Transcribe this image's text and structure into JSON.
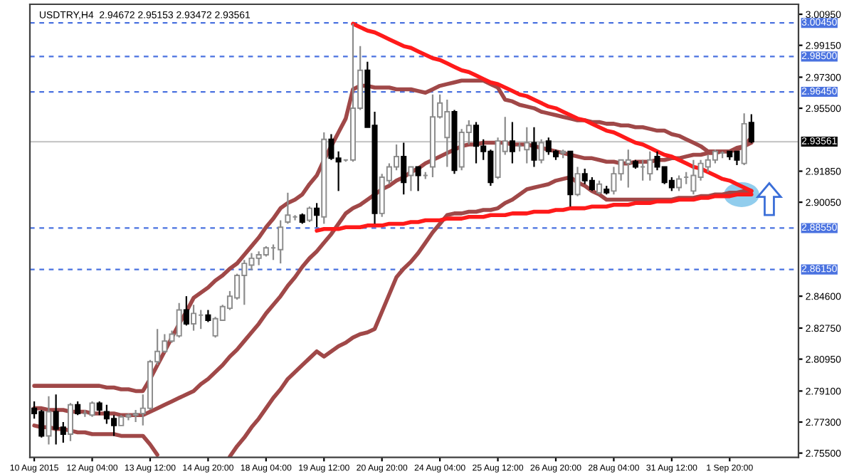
{
  "chart_data": {
    "type": "candlestick",
    "title": "USDTRY,H4  2.94672 2.95153 2.93472 2.93561",
    "categories": [
      "10 Aug 2015",
      null,
      null,
      null,
      null,
      null,
      null,
      null,
      "12 Aug 04:00",
      null,
      null,
      null,
      null,
      null,
      null,
      null,
      "13 Aug 12:00",
      null,
      null,
      null,
      null,
      null,
      null,
      null,
      "14 Aug 20:00",
      null,
      null,
      null,
      null,
      null,
      null,
      null,
      "18 Aug 04:00",
      null,
      null,
      null,
      null,
      null,
      null,
      null,
      "19 Aug 12:00",
      null,
      null,
      null,
      null,
      null,
      null,
      null,
      "20 Aug 20:00",
      null,
      null,
      null,
      null,
      null,
      null,
      null,
      "24 Aug 04:00",
      null,
      null,
      null,
      null,
      null,
      null,
      null,
      "25 Aug 12:00",
      null,
      null,
      null,
      null,
      null,
      null,
      null,
      "26 Aug 20:00",
      null,
      null,
      null,
      null,
      null,
      null,
      null,
      "28 Aug 04:00",
      null,
      null,
      null,
      null,
      null,
      null,
      null,
      "31 Aug 12:00",
      null,
      null,
      null,
      null,
      null,
      null,
      null,
      "1 Sep 20:00",
      null,
      null,
      null
    ],
    "ohlc": [
      [
        2.781,
        2.785,
        2.775,
        2.778
      ],
      [
        2.779,
        2.78,
        2.764,
        2.765
      ],
      [
        2.765,
        2.788,
        2.76,
        2.779
      ],
      [
        2.779,
        2.789,
        2.76,
        2.769
      ],
      [
        2.77,
        2.773,
        2.761,
        2.766
      ],
      [
        2.766,
        2.784,
        2.762,
        2.783
      ],
      [
        2.783,
        2.785,
        2.777,
        2.778
      ],
      [
        2.778,
        2.78,
        2.776,
        2.778
      ],
      [
        2.777,
        2.785,
        2.776,
        2.784
      ],
      [
        2.784,
        2.785,
        2.777,
        2.78
      ],
      [
        2.779,
        2.783,
        2.772,
        2.775
      ],
      [
        2.775,
        2.777,
        2.765,
        2.771
      ],
      [
        2.771,
        2.777,
        2.771,
        2.776
      ],
      [
        2.776,
        2.778,
        2.774,
        2.777
      ],
      [
        2.777,
        2.78,
        2.773,
        2.778
      ],
      [
        2.778,
        2.789,
        2.771,
        2.781
      ],
      [
        2.781,
        2.809,
        2.78,
        2.808
      ],
      [
        2.808,
        2.827,
        2.806,
        2.814
      ],
      [
        2.814,
        2.824,
        2.813,
        2.82
      ],
      [
        2.82,
        2.826,
        2.819,
        2.824
      ],
      [
        2.823,
        2.842,
        2.822,
        2.838
      ],
      [
        2.838,
        2.846,
        2.829,
        2.83
      ],
      [
        2.83,
        2.841,
        2.826,
        2.836
      ],
      [
        2.835,
        2.838,
        2.827,
        2.835
      ],
      [
        2.835,
        2.838,
        2.831,
        2.832
      ],
      [
        2.823,
        2.834,
        2.822,
        2.833
      ],
      [
        2.832,
        2.841,
        2.832,
        2.84
      ],
      [
        2.839,
        2.849,
        2.838,
        2.846
      ],
      [
        2.845,
        2.859,
        2.844,
        2.858
      ],
      [
        2.858,
        2.867,
        2.841,
        2.865
      ],
      [
        2.864,
        2.871,
        2.861,
        2.868
      ],
      [
        2.868,
        2.872,
        2.864,
        2.87
      ],
      [
        2.87,
        2.875,
        2.869,
        2.874
      ],
      [
        2.874,
        2.876,
        2.867,
        2.874
      ],
      [
        2.873,
        2.89,
        2.865,
        2.886
      ],
      [
        2.889,
        2.906,
        2.888,
        2.893
      ],
      [
        2.892,
        2.893,
        2.89,
        2.892
      ],
      [
        2.893,
        2.894,
        2.888,
        2.889
      ],
      [
        2.89,
        2.898,
        2.889,
        2.897
      ],
      [
        2.897,
        2.9,
        2.886,
        2.893
      ],
      [
        2.892,
        2.941,
        2.888,
        2.937
      ],
      [
        2.937,
        2.94,
        2.925,
        2.926
      ],
      [
        2.926,
        2.93,
        2.907,
        2.924
      ],
      [
        2.925,
        2.925,
        2.924,
        2.925
      ],
      [
        2.925,
        3.004,
        2.924,
        2.955
      ],
      [
        2.955,
        2.991,
        2.954,
        2.977
      ],
      [
        2.977,
        2.982,
        2.944,
        2.944
      ],
      [
        2.945,
        2.953,
        2.888,
        2.894
      ],
      [
        2.894,
        2.917,
        2.892,
        2.915
      ],
      [
        2.913,
        2.923,
        2.911,
        2.921
      ],
      [
        2.921,
        2.934,
        2.919,
        2.927
      ],
      [
        2.927,
        2.935,
        2.905,
        2.912
      ],
      [
        2.916,
        2.921,
        2.907,
        2.921
      ],
      [
        2.921,
        2.921,
        2.907,
        2.916
      ],
      [
        2.916,
        2.918,
        2.914,
        2.916
      ],
      [
        2.921,
        2.963,
        2.915,
        2.95
      ],
      [
        2.95,
        2.963,
        2.949,
        2.958
      ],
      [
        2.938,
        2.96,
        2.921,
        2.953
      ],
      [
        2.953,
        2.954,
        2.917,
        2.919
      ],
      [
        2.921,
        2.943,
        2.919,
        2.941
      ],
      [
        2.941,
        2.948,
        2.934,
        2.945
      ],
      [
        2.945,
        2.947,
        2.923,
        2.933
      ],
      [
        2.933,
        2.937,
        2.925,
        2.93
      ],
      [
        2.93,
        2.931,
        2.91,
        2.912
      ],
      [
        2.915,
        2.938,
        2.914,
        2.936
      ],
      [
        2.93,
        2.95,
        2.928,
        2.936
      ],
      [
        2.936,
        2.947,
        2.923,
        2.93
      ],
      [
        2.933,
        2.935,
        2.93,
        2.933
      ],
      [
        2.931,
        2.944,
        2.923,
        2.935
      ],
      [
        2.935,
        2.944,
        2.921,
        2.925
      ],
      [
        2.925,
        2.937,
        2.923,
        2.935
      ],
      [
        2.936,
        2.938,
        2.928,
        2.93
      ],
      [
        2.93,
        2.931,
        2.925,
        2.927
      ],
      [
        2.929,
        2.931,
        2.926,
        2.93
      ],
      [
        2.93,
        2.93,
        2.898,
        2.905
      ],
      [
        2.905,
        2.921,
        2.904,
        2.917
      ],
      [
        2.917,
        2.92,
        2.911,
        2.913
      ],
      [
        2.913,
        2.915,
        2.907,
        2.908
      ],
      [
        2.906,
        2.913,
        2.905,
        2.911
      ],
      [
        2.908,
        2.91,
        2.905,
        2.906
      ],
      [
        2.907,
        2.921,
        2.905,
        2.917
      ],
      [
        2.917,
        2.925,
        2.913,
        2.925
      ],
      [
        2.923,
        2.931,
        2.909,
        2.925
      ],
      [
        2.924,
        2.925,
        2.92,
        2.921
      ],
      [
        2.921,
        2.925,
        2.913,
        2.921
      ],
      [
        2.917,
        2.93,
        2.913,
        2.925
      ],
      [
        2.927,
        2.93,
        2.919,
        2.921
      ],
      [
        2.921,
        2.921,
        2.911,
        2.912
      ],
      [
        2.913,
        2.915,
        2.907,
        2.909
      ],
      [
        2.909,
        2.916,
        2.907,
        2.914
      ],
      [
        2.915,
        2.918,
        2.911,
        2.915
      ],
      [
        2.907,
        2.925,
        2.905,
        2.916
      ],
      [
        2.915,
        2.925,
        2.913,
        2.923
      ],
      [
        2.921,
        2.928,
        2.918,
        2.925
      ],
      [
        2.925,
        2.931,
        2.923,
        2.93
      ],
      [
        2.929,
        2.93,
        2.926,
        2.929
      ],
      [
        2.93,
        2.93,
        2.925,
        2.927
      ],
      [
        2.93,
        2.93,
        2.922,
        2.925
      ],
      [
        2.923,
        2.952,
        2.922,
        2.946
      ],
      [
        2.94672,
        2.95153,
        2.93472,
        2.93561
      ]
    ],
    "colors": [
      "#000000",
      "#000000",
      "#ffffff",
      "#000000",
      "#000000",
      "#ffffff",
      "#000000",
      "#8c8c8c",
      "#ffffff",
      "#000000",
      "#000000",
      "#000000",
      "#ffffff",
      "#ffffff",
      "#ffffff",
      "#ffffff",
      "#ffffff",
      "#ffffff",
      "#ffffff",
      "#ffffff",
      "#ffffff",
      "#000000",
      "#ffffff",
      "#8c8c8c",
      "#000000",
      "#ffffff",
      "#ffffff",
      "#ffffff",
      "#ffffff",
      "#ffffff",
      "#ffffff",
      "#ffffff",
      "#ffffff",
      "#8c8c8c",
      "#ffffff",
      "#ffffff",
      "#8c8c8c",
      "#000000",
      "#ffffff",
      "#000000",
      "#ffffff",
      "#000000",
      "#000000",
      "#8c8c8c",
      "#ffffff",
      "#ffffff",
      "#000000",
      "#000000",
      "#ffffff",
      "#ffffff",
      "#ffffff",
      "#000000",
      "#ffffff",
      "#000000",
      "#8c8c8c",
      "#ffffff",
      "#ffffff",
      "#ffffff",
      "#000000",
      "#ffffff",
      "#ffffff",
      "#000000",
      "#000000",
      "#000000",
      "#ffffff",
      "#ffffff",
      "#000000",
      "#8c8c8c",
      "#ffffff",
      "#000000",
      "#ffffff",
      "#000000",
      "#000000",
      "#ffffff",
      "#000000",
      "#ffffff",
      "#000000",
      "#000000",
      "#ffffff",
      "#000000",
      "#ffffff",
      "#ffffff",
      "#ffffff",
      "#000000",
      "#8c8c8c",
      "#ffffff",
      "#000000",
      "#000000",
      "#000000",
      "#ffffff",
      "#8c8c8c",
      "#ffffff",
      "#ffffff",
      "#ffffff",
      "#ffffff",
      "#8c8c8c",
      "#000000",
      "#000000",
      "#ffffff",
      "#000000"
    ],
    "series": [
      {
        "type": "line",
        "color": "#a04848",
        "values": [
          2.794,
          2.794,
          2.794,
          2.794,
          2.794,
          2.794,
          2.794,
          2.794,
          2.794,
          2.794,
          2.793,
          2.793,
          2.792,
          2.792,
          2.791,
          2.791,
          2.798,
          2.806,
          2.814,
          2.822,
          2.83,
          2.837,
          2.845,
          2.848,
          2.851,
          2.855,
          2.858,
          2.862,
          2.865,
          2.87,
          2.875,
          2.88,
          2.886,
          2.891,
          2.897,
          2.9,
          2.902,
          2.905,
          2.911,
          2.916,
          2.925,
          2.933,
          2.941,
          2.949,
          2.966,
          2.968,
          2.968,
          2.967,
          2.967,
          2.967,
          2.966,
          2.966,
          2.966,
          2.965,
          2.964,
          2.966,
          2.968,
          2.969,
          2.97,
          2.971,
          2.971,
          2.971,
          2.971,
          2.969,
          2.967,
          2.96,
          2.959,
          2.957,
          2.956,
          2.955,
          2.953,
          2.952,
          2.951,
          2.95,
          2.949,
          2.948,
          2.948,
          2.947,
          2.947,
          2.946,
          2.946,
          2.945,
          2.945,
          2.944,
          2.944,
          2.943,
          2.942,
          2.942,
          2.94,
          2.939,
          2.937,
          2.935,
          2.933,
          2.93,
          2.93,
          2.93,
          2.93,
          2.931,
          2.933,
          2.938
        ]
      },
      {
        "type": "line",
        "color": "#a04848",
        "values": [
          2.781,
          2.781,
          2.78,
          2.78,
          2.78,
          2.779,
          2.779,
          2.779,
          2.778,
          2.778,
          2.778,
          2.778,
          2.777,
          2.777,
          2.777,
          2.777,
          2.779,
          2.781,
          2.783,
          2.785,
          2.787,
          2.789,
          2.791,
          2.795,
          2.798,
          2.802,
          2.806,
          2.811,
          2.815,
          2.82,
          2.825,
          2.83,
          2.836,
          2.841,
          2.846,
          2.852,
          2.857,
          2.863,
          2.868,
          2.872,
          2.877,
          2.882,
          2.888,
          2.894,
          2.897,
          2.899,
          2.902,
          2.905,
          2.908,
          2.91,
          2.913,
          2.915,
          2.918,
          2.92,
          2.923,
          2.925,
          2.927,
          2.929,
          2.931,
          2.933,
          2.934,
          2.934,
          2.935,
          2.935,
          2.935,
          2.935,
          2.934,
          2.934,
          2.934,
          2.933,
          2.932,
          2.931,
          2.93,
          2.929,
          2.928,
          2.927,
          2.926,
          2.926,
          2.925,
          2.924,
          2.924,
          2.923,
          2.923,
          2.924,
          2.924,
          2.924,
          2.925,
          2.925,
          2.926,
          2.926,
          2.927,
          2.928,
          2.928,
          2.929,
          2.929,
          2.93,
          2.93,
          2.932,
          2.933,
          2.935
        ]
      },
      {
        "type": "line",
        "color": "#a04848",
        "values": [
          2.771,
          2.77,
          2.77,
          2.769,
          2.769,
          2.768,
          2.767,
          2.767,
          2.766,
          2.766,
          2.766,
          2.766,
          2.765,
          2.765,
          2.765,
          2.765,
          2.76,
          2.754,
          null,
          null,
          null,
          null,
          null,
          null,
          null,
          null,
          null,
          2.753,
          2.759,
          2.764,
          2.77,
          2.775,
          2.781,
          2.787,
          2.792,
          2.798,
          2.802,
          2.806,
          2.81,
          2.814,
          2.811,
          2.814,
          2.817,
          2.819,
          2.822,
          2.824,
          2.825,
          2.827,
          2.837,
          2.847,
          2.857,
          2.862,
          2.866,
          2.871,
          2.877,
          2.883,
          2.888,
          2.893,
          2.894,
          2.894,
          2.895,
          2.895,
          2.896,
          2.896,
          2.897,
          2.9,
          2.902,
          2.905,
          2.908,
          2.909,
          2.91,
          2.911,
          2.913,
          2.914,
          2.915,
          2.912,
          2.91,
          2.907,
          2.905,
          2.902,
          2.902,
          2.902,
          2.902,
          2.902,
          2.902,
          2.902,
          2.902,
          2.902,
          2.902,
          2.903,
          2.903,
          2.903,
          2.904,
          2.904,
          2.905,
          2.905,
          2.906,
          2.906,
          2.907,
          2.907
        ]
      },
      {
        "type": "line",
        "color": "#ff1a1a",
        "values": [
          null,
          null,
          null,
          null,
          null,
          null,
          null,
          null,
          null,
          null,
          null,
          null,
          null,
          null,
          null,
          null,
          null,
          null,
          null,
          null,
          null,
          null,
          null,
          null,
          null,
          null,
          null,
          null,
          null,
          null,
          null,
          null,
          null,
          null,
          null,
          null,
          null,
          null,
          null,
          null,
          null,
          null,
          null,
          null,
          3.004,
          3.002,
          3.0,
          2.999,
          2.997,
          2.995,
          2.993,
          2.991,
          2.99,
          2.988,
          2.986,
          2.984,
          2.983,
          2.981,
          2.979,
          2.977,
          2.976,
          2.974,
          2.972,
          2.97,
          2.969,
          2.967,
          2.965,
          2.963,
          2.962,
          2.96,
          2.958,
          2.956,
          2.955,
          2.953,
          2.951,
          2.949,
          2.948,
          2.946,
          2.944,
          2.942,
          2.941,
          2.939,
          2.937,
          2.935,
          2.934,
          2.932,
          2.93,
          2.928,
          2.927,
          2.925,
          2.923,
          2.921,
          2.92,
          2.918,
          2.916,
          2.914,
          2.913,
          2.911,
          2.909,
          2.907
        ]
      },
      {
        "type": "line",
        "color": "#ff1a1a",
        "values": [
          null,
          null,
          null,
          null,
          null,
          null,
          null,
          null,
          null,
          null,
          null,
          null,
          null,
          null,
          null,
          null,
          null,
          null,
          null,
          null,
          null,
          null,
          null,
          null,
          null,
          null,
          null,
          null,
          null,
          null,
          null,
          null,
          null,
          null,
          null,
          null,
          null,
          null,
          null,
          2.884,
          2.885,
          2.885,
          2.885,
          2.886,
          2.886,
          2.886,
          2.887,
          2.887,
          2.887,
          2.888,
          2.888,
          2.888,
          2.889,
          2.889,
          2.89,
          2.89,
          2.89,
          2.891,
          2.891,
          2.891,
          2.892,
          2.892,
          2.892,
          2.893,
          2.893,
          2.893,
          2.894,
          2.894,
          2.894,
          2.895,
          2.895,
          2.895,
          2.896,
          2.896,
          2.897,
          2.897,
          2.897,
          2.898,
          2.898,
          2.898,
          2.899,
          2.899,
          2.899,
          2.9,
          2.9,
          2.9,
          2.901,
          2.901,
          2.901,
          2.902,
          2.902,
          2.902,
          2.903,
          2.903,
          2.904,
          2.904,
          2.904,
          2.905,
          2.905,
          2.905
        ]
      }
    ],
    "ylim": [
      2.7525,
      3.0153
    ],
    "yticks": [
      {
        "value": 3.0095,
        "label": "3.00950"
      },
      {
        "value": 2.9915,
        "label": "2.99150"
      },
      {
        "value": 2.973,
        "label": "2.97300"
      },
      {
        "value": 2.955,
        "label": "2.95500"
      },
      {
        "value": 2.9185,
        "label": "2.91850"
      },
      {
        "value": 2.9005,
        "label": "2.90050"
      },
      {
        "value": 2.846,
        "label": "2.84600"
      },
      {
        "value": 2.8275,
        "label": "2.82750"
      },
      {
        "value": 2.8095,
        "label": "2.80950"
      },
      {
        "value": 2.791,
        "label": "2.79100"
      },
      {
        "value": 2.773,
        "label": "2.77300"
      },
      {
        "value": 2.755,
        "label": "2.75500"
      }
    ],
    "ref_lines": [
      {
        "axis": "y",
        "value": 3.0045,
        "label": "3.00450",
        "color": "#4a72e0",
        "line_style": "dashed"
      },
      {
        "axis": "y",
        "value": 2.985,
        "label": "2.98500",
        "color": "#4a72e0",
        "line_style": "dashed"
      },
      {
        "axis": "y",
        "value": 2.9645,
        "label": "2.96450",
        "color": "#4a72e0",
        "line_style": "dashed"
      },
      {
        "axis": "y",
        "value": 2.93561,
        "label": "2.93561",
        "color": "#c8c8c8",
        "line_style": "solid"
      },
      {
        "axis": "y",
        "value": 2.8855,
        "label": "2.88550",
        "color": "#4a72e0",
        "line_style": "dashed"
      },
      {
        "axis": "y",
        "value": 2.8615,
        "label": "2.86150",
        "color": "#4a72e0",
        "line_style": "dashed"
      }
    ],
    "grid": false,
    "legend": false
  }
}
